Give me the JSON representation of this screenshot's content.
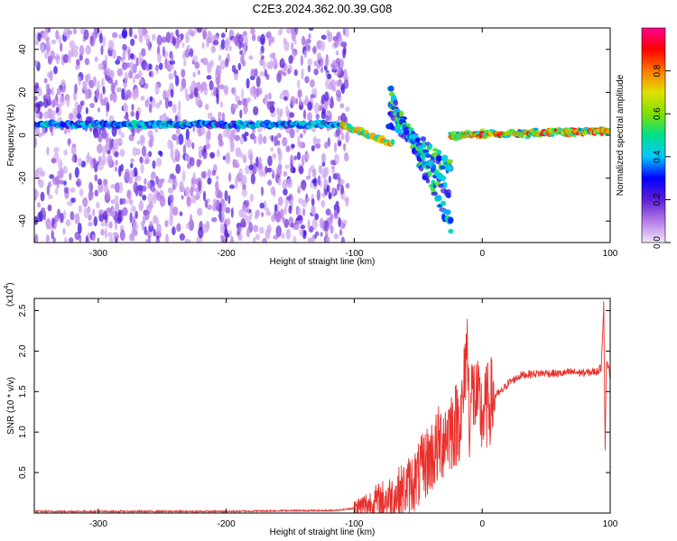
{
  "title": "C2E3.2024.362.00.39.G08",
  "chart_data": [
    {
      "type": "heatmap",
      "xlabel": "Height of straight line (km)",
      "ylabel": "Frequency (Hz)",
      "xlim": [
        -350,
        100
      ],
      "ylim": [
        -50,
        50
      ],
      "x_ticks": [
        -300,
        -200,
        -100,
        0,
        100
      ],
      "y_ticks": [
        -40,
        -20,
        0,
        20,
        40
      ],
      "colorbar": {
        "label": "Normalized spectral amplitude",
        "range": [
          0.0,
          1.0
        ],
        "ticks": [
          "0.0",
          "0.2",
          "0.4",
          "0.6",
          "0.8"
        ],
        "stops": [
          "#f0e6f8",
          "#b57be8",
          "#5d1fd2",
          "#0000ff",
          "#00c8ff",
          "#00e08a",
          "#7fe000",
          "#e0e000",
          "#ff7a00",
          "#ff0000",
          "#ff0090"
        ]
      },
      "features": [
        {
          "x_range": [
            -350,
            -105
          ],
          "f_range": [
            -50,
            50
          ],
          "amplitude": [
            0.05,
            0.25
          ]
        },
        {
          "x_range": [
            -350,
            -110
          ],
          "f_center": 5,
          "amplitude": [
            0.2,
            0.5
          ]
        },
        {
          "x_range": [
            -110,
            -70
          ],
          "f_center": [
            5,
            -4
          ],
          "amplitude": [
            0.4,
            0.85
          ]
        },
        {
          "x_range": [
            -72,
            -25
          ],
          "f_center": [
            18,
            -38
          ],
          "amplitude": [
            0.2,
            0.6
          ]
        },
        {
          "x_range": [
            -25,
            100
          ],
          "f_center": [
            0,
            2
          ],
          "amplitude": [
            0.5,
            0.95
          ]
        }
      ]
    },
    {
      "type": "line",
      "xlabel": "Height of straight line (km)",
      "ylabel": "SNR (10 * v/v)",
      "y_multiplier": "(x10",
      "y_multiplier_exp": "4",
      "y_multiplier_close": ")",
      "xlim": [
        -350,
        100
      ],
      "ylim": [
        0,
        2.65
      ],
      "x_ticks": [
        -300,
        -200,
        -100,
        0,
        100
      ],
      "y_ticks": [
        "0.5",
        "1.0",
        "1.5",
        "2.0",
        "2.5"
      ],
      "color": "#e8322e",
      "series": [
        {
          "x": [
            -350,
            -300,
            -250,
            -200,
            -150,
            -120,
            -110,
            -100,
            -90,
            -80,
            -70,
            -60,
            -50,
            -45,
            -40,
            -35,
            -30,
            -25,
            -20,
            -15,
            -12,
            -10,
            -8,
            -5,
            0,
            5,
            10,
            15,
            20,
            25,
            30,
            40,
            50,
            60,
            70,
            80,
            90,
            93,
            95,
            96,
            97,
            100
          ],
          "y": [
            0.02,
            0.02,
            0.02,
            0.02,
            0.03,
            0.03,
            0.04,
            0.06,
            0.1,
            0.15,
            0.2,
            0.3,
            0.45,
            0.6,
            0.7,
            0.8,
            0.95,
            1.05,
            1.1,
            1.3,
            2.2,
            1.2,
            1.5,
            1.4,
            1.2,
            1.35,
            1.45,
            1.5,
            1.6,
            1.65,
            1.7,
            1.72,
            1.73,
            1.72,
            1.74,
            1.73,
            1.75,
            1.8,
            2.62,
            0.75,
            1.9,
            1.7
          ]
        }
      ]
    }
  ]
}
